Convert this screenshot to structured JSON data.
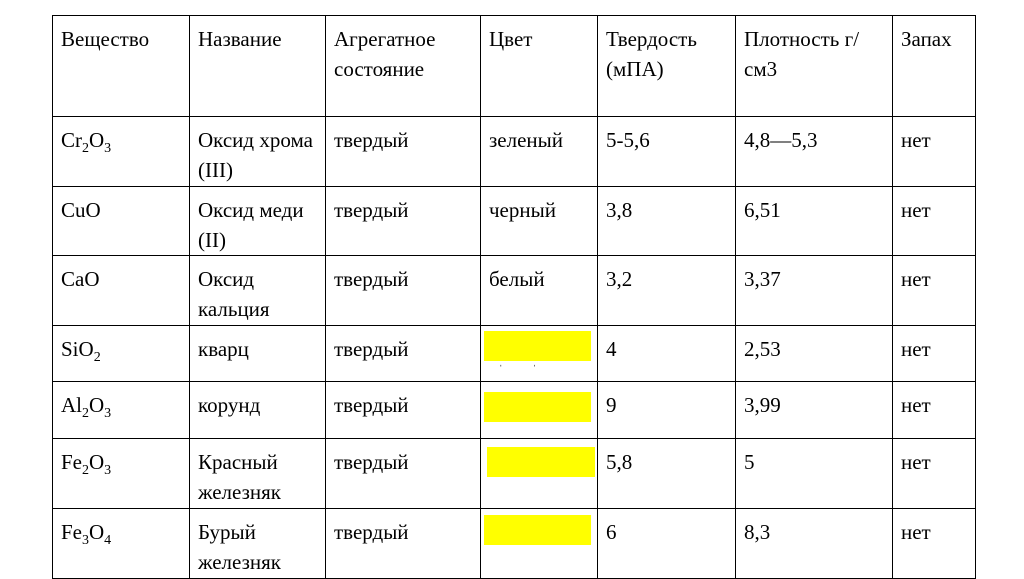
{
  "table": {
    "headers": [
      "Вещество",
      "Название",
      "Агрегатное состояние",
      "Цвет",
      "Твердость (мПА)",
      "Плотность г/см3",
      "Запах"
    ],
    "rows": [
      {
        "formula": {
          "parts": [
            "Cr",
            "2",
            "O",
            "3"
          ]
        },
        "name": "Оксид хрома (III)",
        "state": "твердый",
        "color": "зеленый",
        "hardness": "5-5,6",
        "density": "4,8—5,3",
        "smell": "нет"
      },
      {
        "formula": {
          "parts": [
            "CuO"
          ]
        },
        "name": "Оксид меди (II)",
        "state": "твердый",
        "color": "черный",
        "hardness": "3,8",
        "density": "6,51",
        "smell": "нет"
      },
      {
        "formula": {
          "parts": [
            "CaO"
          ]
        },
        "name": "Оксид кальция",
        "state": "твердый",
        "color": "белый",
        "hardness": "3,2",
        "density": "3,37",
        "smell": "нет"
      },
      {
        "formula": {
          "parts": [
            "SiO",
            "2"
          ]
        },
        "name": "кварц",
        "state": "твердый",
        "color": "",
        "hardness": "4",
        "density": "2,53",
        "smell": "нет"
      },
      {
        "formula": {
          "parts": [
            "Al",
            "2",
            "O",
            "3"
          ]
        },
        "name": "корунд",
        "state": "твердый",
        "color": "",
        "hardness": "9",
        "density": "3,99",
        "smell": "нет"
      },
      {
        "formula": {
          "parts": [
            "Fe",
            "2",
            "O",
            "3"
          ]
        },
        "name": "Красный железняк",
        "state": "твердый",
        "color": "",
        "hardness": "5,8",
        "density": "5",
        "smell": "нет"
      },
      {
        "formula": {
          "parts": [
            "Fe",
            "3",
            "O",
            "4"
          ]
        },
        "name": "Бурый железняк",
        "state": "твердый",
        "color": "",
        "hardness": "6",
        "density": "8,3",
        "smell": "нет"
      }
    ],
    "highlight_color": "#ffff00"
  }
}
